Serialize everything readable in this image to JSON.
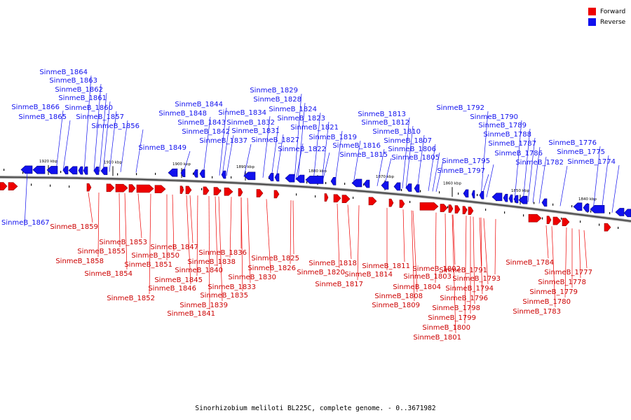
{
  "legend": {
    "forward_label": "Forward",
    "reverse_label": "Reverse",
    "forward_color": "#ee0000",
    "reverse_color": "#1111ee"
  },
  "caption": "Sinorhizobium meliloti BL225C, complete genome. - 0..3671982",
  "ticks": [
    "1920 kbp",
    "1910 kbp",
    "1900 kbp",
    "1890 kbp",
    "1880 kbp",
    "1870 kbp",
    "1860 kbp",
    "1850 kbp",
    "1840 kbp"
  ],
  "reverse_genes": [
    "SinmeB_1867",
    "SinmeB_1866",
    "SinmeB_1865",
    "SinmeB_1864",
    "SinmeB_1863",
    "SinmeB_1862",
    "SinmeB_1861",
    "SinmeB_1860",
    "SinmeB_1857",
    "SinmeB_1856",
    "SinmeB_1849",
    "SinmeB_1848",
    "SinmeB_1844",
    "SinmeB_1843",
    "SinmeB_1842",
    "SinmeB_1837",
    "SinmeB_1834",
    "SinmeB_1832",
    "SinmeB_1831",
    "SinmeB_1829",
    "SinmeB_1828",
    "SinmeB_1827",
    "SinmeB_1824",
    "SinmeB_1823",
    "SinmeB_1822",
    "SinmeB_1821",
    "SinmeB_1819",
    "SinmeB_1816",
    "SinmeB_1815",
    "SinmeB_1813",
    "SinmeB_1812",
    "SinmeB_1810",
    "SinmeB_1807",
    "SinmeB_1806",
    "SinmeB_1805",
    "SinmeB_1797",
    "SinmeB_1795",
    "SinmeB_1792",
    "SinmeB_1790",
    "SinmeB_1789",
    "SinmeB_1788",
    "SinmeB_1787",
    "SinmeB_1786",
    "SinmeB_1782",
    "SinmeB_1776",
    "SinmeB_1775",
    "SinmeB_1774"
  ],
  "forward_genes": [
    "SinmeB_1859",
    "SinmeB_1858",
    "SinmeB_1855",
    "SinmeB_1854",
    "SinmeB_1853",
    "SinmeB_1852",
    "SinmeB_1851",
    "SinmeB_1850",
    "SinmeB_1847",
    "SinmeB_1846",
    "SinmeB_1845",
    "SinmeB_1841",
    "SinmeB_1840",
    "SinmeB_1839",
    "SinmeB_1838",
    "SinmeB_1836",
    "SinmeB_1835",
    "SinmeB_1833",
    "SinmeB_1830",
    "SinmeB_1826",
    "SinmeB_1825",
    "SinmeB_1820",
    "SinmeB_1818",
    "SinmeB_1817",
    "SinmeB_1814",
    "SinmeB_1811",
    "SinmeB_1809",
    "SinmeB_1808",
    "SinmeB_1804",
    "SinmeB_1803",
    "SinmeB_1802",
    "SinmeB_1801",
    "SinmeB_1800",
    "SinmeB_1799",
    "SinmeB_1798",
    "SinmeB_1796",
    "SinmeB_1794",
    "SinmeB_1793",
    "SinmeB_1791",
    "SinmeB_1784",
    "SinmeB_1783",
    "SinmeB_1780",
    "SinmeB_1779",
    "SinmeB_1778",
    "SinmeB_1777"
  ]
}
